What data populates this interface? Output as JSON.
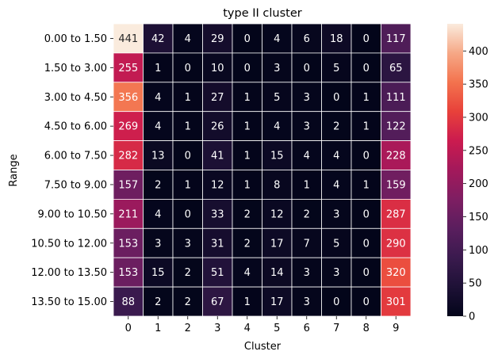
{
  "chart_data": {
    "type": "heatmap",
    "title": "type II cluster",
    "xlabel": "Cluster",
    "ylabel": "Range",
    "x_categories": [
      "0",
      "1",
      "2",
      "3",
      "4",
      "5",
      "6",
      "7",
      "8",
      "9"
    ],
    "y_categories": [
      "0.00 to 1.50",
      "1.50 to 3.00",
      "3.00 to 4.50",
      "4.50 to 6.00",
      "6.00 to 7.50",
      "7.50 to 9.00",
      "9.00 to 10.50",
      "10.50 to 12.00",
      "12.00 to 13.50",
      "13.50 to 15.00"
    ],
    "values": [
      [
        441,
        42,
        4,
        29,
        0,
        4,
        6,
        18,
        0,
        117
      ],
      [
        255,
        1,
        0,
        10,
        0,
        3,
        0,
        5,
        0,
        65
      ],
      [
        356,
        4,
        1,
        27,
        1,
        5,
        3,
        0,
        1,
        111
      ],
      [
        269,
        4,
        1,
        26,
        1,
        4,
        3,
        2,
        1,
        122
      ],
      [
        282,
        13,
        0,
        41,
        1,
        15,
        4,
        4,
        0,
        228
      ],
      [
        157,
        2,
        1,
        12,
        1,
        8,
        1,
        4,
        1,
        159
      ],
      [
        211,
        4,
        0,
        33,
        2,
        12,
        2,
        3,
        0,
        287
      ],
      [
        153,
        3,
        3,
        31,
        2,
        17,
        7,
        5,
        0,
        290
      ],
      [
        153,
        15,
        2,
        51,
        4,
        14,
        3,
        3,
        0,
        320
      ],
      [
        88,
        2,
        2,
        67,
        1,
        17,
        3,
        0,
        0,
        301
      ]
    ],
    "vmin": 0,
    "vmax": 441,
    "colorbar_ticks": [
      0,
      50,
      100,
      150,
      200,
      250,
      300,
      350,
      400
    ],
    "colormap": "rocket",
    "annotated": true
  }
}
